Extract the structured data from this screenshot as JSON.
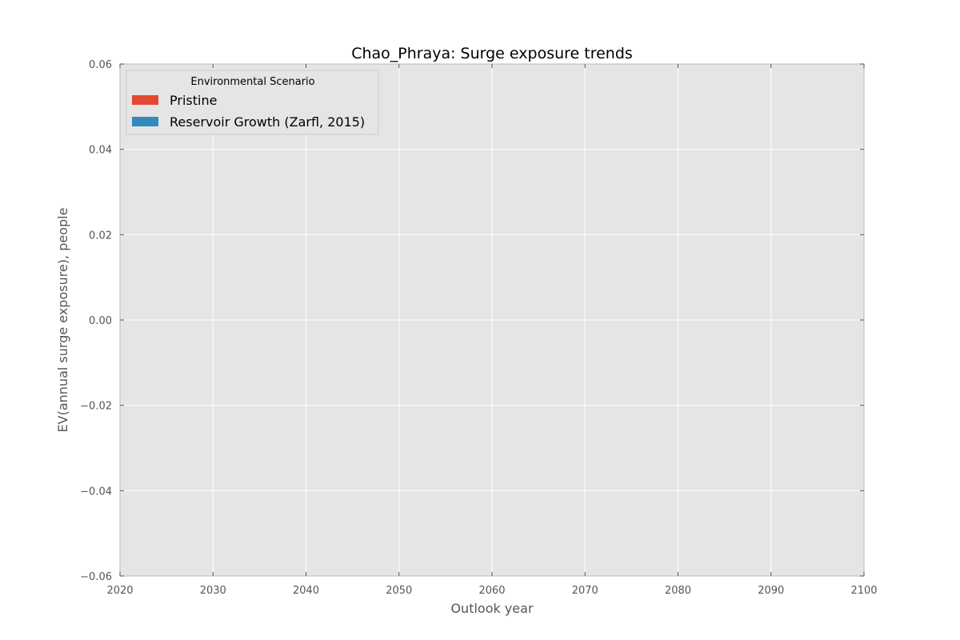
{
  "chart_data": {
    "type": "area",
    "title": "Chao_Phraya: Surge exposure trends",
    "xlabel": "Outlook year",
    "ylabel": "EV(annual surge exposure), people",
    "xlim": [
      2020,
      2100
    ],
    "ylim": [
      -0.06,
      0.06
    ],
    "x_ticks": [
      2020,
      2030,
      2040,
      2050,
      2060,
      2070,
      2080,
      2090,
      2100
    ],
    "y_ticks": [
      -0.06,
      -0.04,
      -0.02,
      0.0,
      0.02,
      0.04,
      0.06
    ],
    "x_tick_labels": [
      "2020",
      "2030",
      "2040",
      "2050",
      "2060",
      "2070",
      "2080",
      "2090",
      "2100"
    ],
    "y_tick_labels": [
      "−0.06",
      "−0.04",
      "−0.02",
      "0.00",
      "0.02",
      "0.04",
      "0.06"
    ],
    "grid": true,
    "legend": {
      "title": "Environmental Scenario",
      "placement": "top-left",
      "entries": [
        "Pristine",
        "Reservoir Growth (Zarfl, 2015)"
      ]
    },
    "series": [
      {
        "name": "Pristine",
        "color": "#e24a33",
        "x": [],
        "values": []
      },
      {
        "name": "Reservoir Growth (Zarfl, 2015)",
        "color": "#348abd",
        "x": [],
        "values": []
      }
    ],
    "background_color": "#e5e5e5",
    "grid_color": "#ffffff"
  }
}
